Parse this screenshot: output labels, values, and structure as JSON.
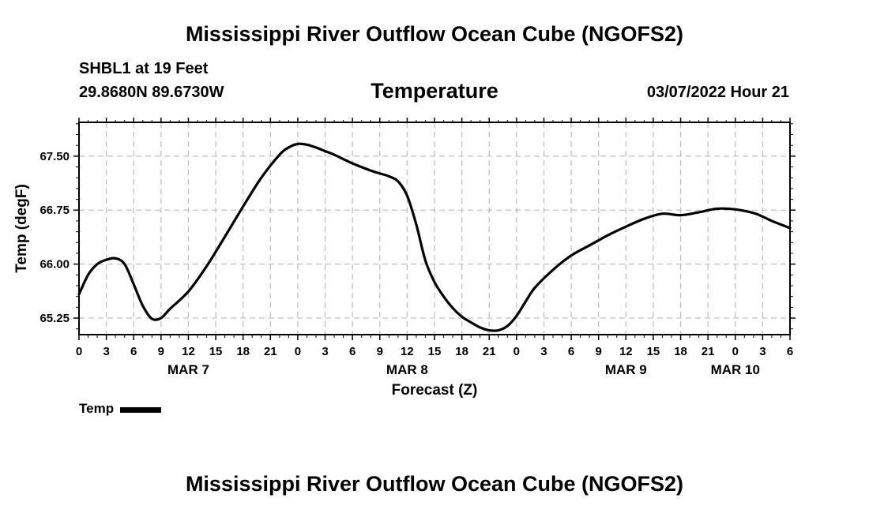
{
  "title": "Mississippi River Outflow Ocean Cube (NGOFS2)",
  "bottom_title": "Mississippi River Outflow Ocean Cube (NGOFS2)",
  "station": "SHBL1 at 19 Feet",
  "coords": "29.8680N  89.6730W",
  "subtitle": "Temperature",
  "datetime": "03/07/2022 Hour 21",
  "legend": {
    "label": "Temp",
    "color": "#000000"
  },
  "chart_data": {
    "type": "line",
    "title": "Temperature",
    "xlabel": "Forecast (Z)",
    "ylabel": "Temp (degF)",
    "xlim": [
      0,
      78
    ],
    "ylim": [
      65.02,
      67.97
    ],
    "yticks": [
      65.25,
      66.0,
      66.75,
      67.5
    ],
    "ytick_labels": [
      "65.25",
      "66.00",
      "66.75",
      "67.50"
    ],
    "xticks": [
      0,
      3,
      6,
      9,
      12,
      15,
      18,
      21,
      24,
      27,
      30,
      33,
      36,
      39,
      42,
      45,
      48,
      51,
      54,
      57,
      60,
      63,
      66,
      69,
      72,
      75,
      78
    ],
    "xtick_labels": [
      "0",
      "3",
      "6",
      "9",
      "12",
      "15",
      "18",
      "21",
      "0",
      "3",
      "6",
      "9",
      "12",
      "15",
      "18",
      "21",
      "0",
      "3",
      "6",
      "9",
      "12",
      "15",
      "18",
      "21",
      "0",
      "3",
      "6"
    ],
    "date_labels": [
      {
        "x": 12,
        "label": "MAR 7"
      },
      {
        "x": 36,
        "label": "MAR 8"
      },
      {
        "x": 60,
        "label": "MAR 9"
      },
      {
        "x": 72,
        "label": "MAR 10"
      }
    ],
    "grid": true,
    "series": [
      {
        "name": "Temp",
        "color": "#000000",
        "x": [
          0,
          1,
          2,
          3,
          4,
          5,
          6,
          7,
          8,
          9,
          10,
          12,
          14,
          16,
          18,
          20,
          22,
          23,
          24,
          25,
          26,
          27,
          28,
          30,
          32,
          33,
          34,
          35,
          36,
          37,
          38,
          39,
          40,
          41,
          42,
          43,
          44,
          45,
          46,
          47,
          48,
          49,
          50,
          52,
          54,
          56,
          57,
          58,
          60,
          62,
          64,
          66,
          68,
          70,
          72,
          74,
          75,
          76,
          77,
          78
        ],
        "y": [
          65.58,
          65.85,
          66.0,
          66.06,
          66.08,
          66.0,
          65.72,
          65.42,
          65.24,
          65.25,
          65.38,
          65.62,
          65.97,
          66.38,
          66.8,
          67.2,
          67.52,
          67.62,
          67.67,
          67.66,
          67.62,
          67.57,
          67.52,
          67.4,
          67.3,
          67.26,
          67.22,
          67.15,
          66.95,
          66.55,
          66.05,
          65.75,
          65.55,
          65.39,
          65.27,
          65.19,
          65.12,
          65.08,
          65.08,
          65.14,
          65.28,
          65.48,
          65.67,
          65.92,
          66.12,
          66.26,
          66.33,
          66.4,
          66.52,
          66.63,
          66.7,
          66.68,
          66.72,
          66.77,
          66.76,
          66.71,
          66.66,
          66.6,
          66.55,
          66.5
        ]
      }
    ]
  }
}
